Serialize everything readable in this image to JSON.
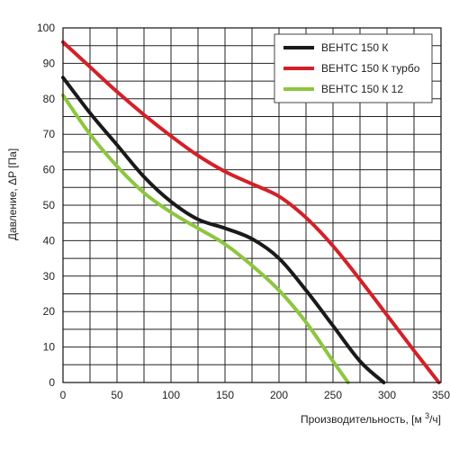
{
  "chart_data": {
    "type": "line",
    "xlabel": "Производительность, [м³/ч]",
    "xlabel_parts": {
      "pre": "Производительность, [м ",
      "sup": "3",
      "post": "/ч]"
    },
    "ylabel": "Давление, ΔP [Па]",
    "xlim": [
      0,
      350
    ],
    "ylim": [
      0,
      100
    ],
    "x_ticks": [
      "0",
      "50",
      "100",
      "150",
      "200",
      "250",
      "300",
      "350"
    ],
    "y_ticks": [
      "0",
      "10",
      "20",
      "30",
      "40",
      "50",
      "60",
      "70",
      "80",
      "90",
      "100"
    ],
    "grid": true,
    "legend_position": "top-right",
    "series": [
      {
        "name": "ВЕНТС 150 К",
        "color": "#1a1a1a",
        "x": [
          0,
          25,
          50,
          75,
          100,
          125,
          150,
          175,
          200,
          225,
          250,
          275,
          297
        ],
        "y": [
          86,
          76,
          67,
          58,
          51,
          46,
          43.5,
          40.5,
          35,
          26,
          16,
          6,
          0
        ]
      },
      {
        "name": "ВЕНТС 150 К турбо",
        "color": "#d42028",
        "x": [
          0,
          25,
          50,
          75,
          100,
          125,
          150,
          175,
          200,
          225,
          250,
          275,
          300,
          325,
          348
        ],
        "y": [
          96,
          89,
          82,
          75.5,
          69.5,
          64,
          59.5,
          56,
          52.5,
          46.5,
          38.5,
          29,
          19,
          9,
          0
        ]
      },
      {
        "name": "ВЕНТС 150 К 12",
        "color": "#8dc63f",
        "x": [
          0,
          25,
          50,
          75,
          100,
          125,
          150,
          175,
          200,
          225,
          250,
          264
        ],
        "y": [
          81,
          70,
          61,
          53.5,
          48,
          43.5,
          39,
          33,
          26,
          17,
          6,
          0
        ]
      }
    ]
  }
}
